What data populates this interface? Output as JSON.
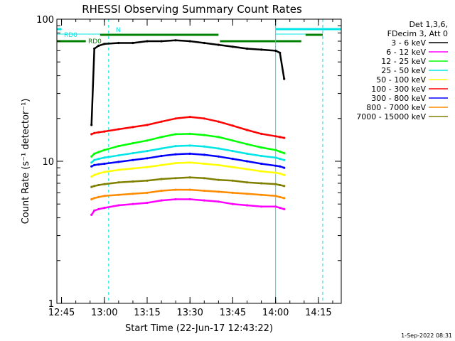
{
  "chart_data": {
    "type": "line",
    "title": "RHESSI Observing Summary Count Rates",
    "xlabel": "Start Time (22-Jun-17 12:43:22)",
    "ylabel": "Count Rate (s⁻¹ detector⁻¹)",
    "y_scale": "log",
    "ylim": [
      1,
      100
    ],
    "y_ticks": [
      {
        "value": 1,
        "label": "1"
      },
      {
        "value": 10,
        "label": "10"
      },
      {
        "value": 100,
        "label": "100"
      }
    ],
    "xlim": [
      "12:43:22",
      "14:23:00"
    ],
    "x_ticks": [
      "12:45",
      "13:00",
      "13:15",
      "13:30",
      "13:45",
      "14:00",
      "14:15"
    ],
    "x_tick_values": [
      "12:45",
      "13:00",
      "13:15",
      "13:30",
      "13:45",
      "14:00",
      "14:15"
    ],
    "legend_header": [
      "Det 1,3,6,",
      "FDecim 3, Att 0"
    ],
    "legend_position": "right",
    "x": [
      "12:55:30",
      "12:56:30",
      "12:58:00",
      "13:00:00",
      "13:05:00",
      "13:10:00",
      "13:15:00",
      "13:20:00",
      "13:25:00",
      "13:30:00",
      "13:35:00",
      "13:40:00",
      "13:45:00",
      "13:50:00",
      "13:55:00",
      "14:00:00",
      "14:01:30",
      "14:03:00"
    ],
    "series": [
      {
        "name": "3 - 6 keV",
        "color": "#000000",
        "values": [
          18,
          62,
          65,
          67,
          68,
          68,
          70,
          70,
          71,
          70,
          68,
          66,
          64,
          62,
          61,
          60,
          58,
          38
        ]
      },
      {
        "name": "6 - 12 keV",
        "color": "#ff00ff",
        "values": [
          4.2,
          4.5,
          4.6,
          4.7,
          4.9,
          5.0,
          5.1,
          5.3,
          5.4,
          5.4,
          5.3,
          5.2,
          5.0,
          4.9,
          4.8,
          4.8,
          4.7,
          4.6
        ]
      },
      {
        "name": "12 - 25 keV",
        "color": "#00ff00",
        "values": [
          10.8,
          11.3,
          11.6,
          12.0,
          12.8,
          13.4,
          14.0,
          14.8,
          15.5,
          15.6,
          15.3,
          14.8,
          14.0,
          13.2,
          12.5,
          12.0,
          11.7,
          11.4
        ]
      },
      {
        "name": "25 - 50 keV",
        "color": "#00e5e5",
        "values": [
          9.8,
          10.2,
          10.4,
          10.6,
          11.0,
          11.4,
          11.8,
          12.3,
          12.8,
          12.9,
          12.7,
          12.3,
          11.8,
          11.3,
          10.9,
          10.6,
          10.4,
          10.2
        ]
      },
      {
        "name": "50 - 100 keV",
        "color": "#ffff00",
        "values": [
          7.8,
          8.0,
          8.2,
          8.4,
          8.7,
          8.9,
          9.1,
          9.4,
          9.7,
          9.8,
          9.6,
          9.4,
          9.1,
          8.8,
          8.5,
          8.3,
          8.2,
          8.0
        ]
      },
      {
        "name": "100 - 300 keV",
        "color": "#ff0000",
        "values": [
          15.5,
          15.8,
          16.0,
          16.2,
          16.8,
          17.4,
          18.0,
          19.0,
          20.0,
          20.5,
          20.0,
          19.0,
          17.8,
          16.6,
          15.6,
          15.0,
          14.8,
          14.6
        ]
      },
      {
        "name": "300 - 800 keV",
        "color": "#0000ff",
        "values": [
          9.2,
          9.4,
          9.5,
          9.6,
          9.9,
          10.2,
          10.5,
          10.9,
          11.2,
          11.3,
          11.1,
          10.8,
          10.4,
          10.0,
          9.6,
          9.3,
          9.2,
          9.0
        ]
      },
      {
        "name": "800 - 7000 keV",
        "color": "#ff8c00",
        "values": [
          5.4,
          5.5,
          5.6,
          5.7,
          5.8,
          5.9,
          6.0,
          6.2,
          6.3,
          6.3,
          6.2,
          6.1,
          6.0,
          5.9,
          5.8,
          5.7,
          5.6,
          5.5
        ]
      },
      {
        "name": "7000 - 15000 keV",
        "color": "#808000",
        "values": [
          6.6,
          6.7,
          6.8,
          6.9,
          7.1,
          7.2,
          7.3,
          7.5,
          7.6,
          7.7,
          7.6,
          7.4,
          7.3,
          7.1,
          7.0,
          6.9,
          6.8,
          6.7
        ]
      }
    ],
    "annotations": {
      "N_label": "N",
      "RD0_label": "RD0",
      "night_intervals": [
        [
          "12:43:22",
          "12:45:00"
        ],
        [
          "14:00:00",
          "14:23:00"
        ]
      ],
      "saa_intervals": [
        [
          "12:43:22",
          "13:01:30"
        ],
        [
          "14:00:00",
          "14:16:30"
        ]
      ],
      "rd_intervals": [
        [
          "12:43:22",
          "12:53:30"
        ],
        [
          "12:58:30",
          "13:40:00"
        ],
        [
          "13:40:30",
          "14:09:00"
        ],
        [
          "14:10:30",
          "14:16:30"
        ]
      ],
      "solid_vertical_lines": [
        "12:43:22",
        "14:00:00"
      ],
      "dashed_vertical_lines": [
        "13:01:30",
        "14:16:30"
      ]
    },
    "grid": false
  },
  "footer": {
    "timestamp": "1-Sep-2022 08:31"
  }
}
